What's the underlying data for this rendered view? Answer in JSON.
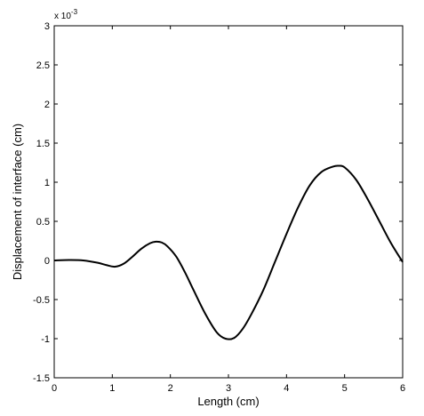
{
  "chart_data": {
    "type": "line",
    "xlabel": "Length (cm)",
    "ylabel": "Displacement of interface (cm)",
    "y_multiplier": "x 10",
    "y_multiplier_exp": "-3",
    "xlim": [
      0,
      6
    ],
    "ylim": [
      -1.5,
      3
    ],
    "grid": false,
    "x_ticks": [
      0,
      1,
      2,
      3,
      4,
      5,
      6
    ],
    "y_ticks": [
      -1.5,
      -1,
      -0.5,
      0,
      0.5,
      1,
      1.5,
      2,
      2.5,
      3
    ],
    "x_tick_labels": [
      "0",
      "1",
      "2",
      "3",
      "4",
      "5",
      "6"
    ],
    "y_tick_labels": [
      "-1.5",
      "-1",
      "-0.5",
      "0",
      "0.5",
      "1",
      "1.5",
      "2",
      "2.5",
      "3"
    ],
    "series": [
      {
        "color": "#000000",
        "x": [
          0,
          0.25,
          0.5,
          0.75,
          0.9,
          1.05,
          1.2,
          1.35,
          1.5,
          1.65,
          1.75,
          1.85,
          1.95,
          2.1,
          2.25,
          2.4,
          2.6,
          2.8,
          2.95,
          3.1,
          3.25,
          3.4,
          3.6,
          3.8,
          4.0,
          4.2,
          4.4,
          4.6,
          4.8,
          4.9,
          5.0,
          5.2,
          5.4,
          5.6,
          5.8,
          6.0
        ],
        "y": [
          0,
          0.005,
          0,
          -0.03,
          -0.06,
          -0.08,
          -0.04,
          0.05,
          0.15,
          0.22,
          0.24,
          0.23,
          0.18,
          0.05,
          -0.15,
          -0.38,
          -0.68,
          -0.92,
          -1.0,
          -0.99,
          -0.87,
          -0.68,
          -0.38,
          -0.02,
          0.34,
          0.68,
          0.96,
          1.13,
          1.2,
          1.21,
          1.19,
          1.03,
          0.78,
          0.5,
          0.22,
          -0.02
        ]
      }
    ]
  }
}
